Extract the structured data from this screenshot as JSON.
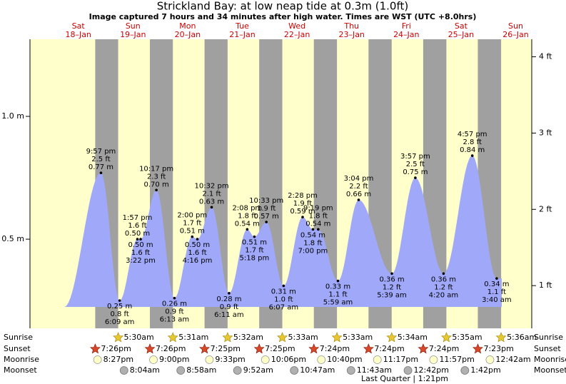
{
  "chart_data": {
    "type": "area",
    "title": "Strickland Bay: at low  neap tide at 0.3m (1.0ft)",
    "subtitle": "Image captured 7 hours and 34 minutes after high water. Times are WST (UTC +8.0hrs)",
    "days": [
      "Sat",
      "Sun",
      "Mon",
      "Tue",
      "Wed",
      "Thu",
      "Fri",
      "Sat",
      "Sun"
    ],
    "dates": [
      "18–Jan",
      "19–Jan",
      "20–Jan",
      "21–Jan",
      "22–Jan",
      "23–Jan",
      "24–Jan",
      "25–Jan",
      "26–Jan"
    ],
    "x": [
      "9:57 pm",
      "6:09 am",
      "1:57 pm",
      "3:22 pm",
      "10:17 pm",
      "6:13 am",
      "2:00 pm",
      "4:16 pm",
      "10:32 pm",
      "6:11 am",
      "2:08 pm",
      "5:18 pm",
      "10:33 pm",
      "6:07 am",
      "2:28 pm",
      "7:00 pm",
      "9:19 pm",
      "5:59 am",
      "3:04 pm",
      "5:39 am",
      "3:57 pm",
      "4:20 am",
      "4:57 pm",
      "3:40 am"
    ],
    "values": [
      0.77,
      0.25,
      0.5,
      0.5,
      0.7,
      0.26,
      0.51,
      0.5,
      0.63,
      0.28,
      0.54,
      0.51,
      0.57,
      0.31,
      0.59,
      0.54,
      0.54,
      0.33,
      0.66,
      0.36,
      0.75,
      0.36,
      0.84,
      0.34
    ],
    "value_labels": [
      "0.77 m",
      "0.25 m",
      "0.50 m",
      "0.50 m",
      "0.70 m",
      "0.26 m",
      "0.51 m",
      "0.50 m",
      "0.63 m",
      "0.28 m",
      "0.54 m",
      "0.51 m",
      "0.57 m",
      "0.31 m",
      "0.59 m",
      "0.54 m",
      "0.54 m",
      "0.33 m",
      "0.66 m",
      "0.36 m",
      "0.75 m",
      "0.36 m",
      "0.84 m",
      "0.34 m"
    ],
    "ft_labels": [
      "2.5 ft",
      "0.8 ft",
      "1.6 ft",
      "1.6 ft",
      "2.3 ft",
      "0.9 ft",
      "1.7 ft",
      "1.6 ft",
      "2.1 ft",
      "0.9 ft",
      "1.8 ft",
      "1.7 ft",
      "1.9 ft",
      "1.0 ft",
      "1.9 ft",
      "1.8 ft",
      "1.8 ft",
      "1.1 ft",
      "2.2 ft",
      "1.2 ft",
      "2.5 ft",
      "1.2 ft",
      "2.8 ft",
      "1.1 ft"
    ],
    "color": "#a0a8fa",
    "ylim": [
      0.137,
      1.314
    ],
    "yticks": [
      {
        "value": 0.5,
        "label": "0.5 m"
      },
      {
        "value": 1.0,
        "label": "1.0 m"
      }
    ],
    "y2lim": [
      0.44,
      4.23
    ],
    "y2ticks": [
      {
        "value": 1,
        "label": "1 ft"
      },
      {
        "value": 2,
        "label": "2 ft"
      },
      {
        "value": 3,
        "label": "3 ft"
      },
      {
        "value": 4,
        "label": "4 ft"
      }
    ],
    "row_labels": [
      "Sunrise",
      "Sunset",
      "Moonrise",
      "Moonset"
    ],
    "sunrise": [
      null,
      "5:30am",
      "5:31am",
      "5:32am",
      "5:33am",
      "5:33am",
      "5:34am",
      "5:35am",
      "5:36am"
    ],
    "sunset": [
      "7:26pm",
      "7:26pm",
      "7:25pm",
      "7:25pm",
      "7:24pm",
      "7:24pm",
      "7:24pm",
      "7:23pm",
      null
    ],
    "moonrise": [
      "8:27pm",
      "9:00pm",
      "9:33pm",
      "10:06pm",
      "10:40pm",
      "11:17pm",
      "11:57pm",
      null,
      "12:42am"
    ],
    "moonset": [
      null,
      "8:04am",
      "8:58am",
      "9:52am",
      "10:47am",
      "11:43am",
      "12:42pm",
      "1:42pm",
      null
    ],
    "moon_phase": "Last Quarter | 1:21pm"
  }
}
